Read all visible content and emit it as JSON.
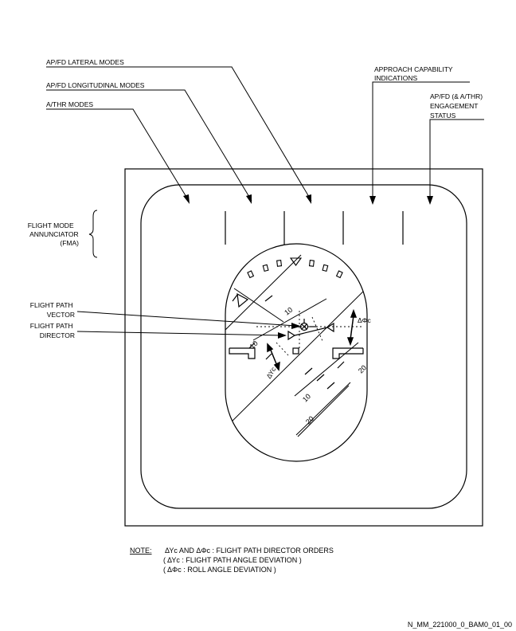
{
  "callouts": {
    "ap_fd_lateral_modes": "AP/FD LATERAL MODES",
    "ap_fd_longitudinal_modes": "AP/FD LONGITUDINAL MODES",
    "athr_modes": "A/THR MODES",
    "approach_capability": [
      "APPROACH CAPABILITY",
      "INDICATIONS"
    ],
    "engagement_status": [
      "AP/FD (& A/THR)",
      "ENGAGEMENT",
      "STATUS"
    ],
    "fma": [
      "FLIGHT MODE",
      "ANNUNCIATOR",
      "(FMA)"
    ],
    "flight_path_vector": [
      "FLIGHT PATH",
      "VECTOR"
    ],
    "flight_path_director": [
      "FLIGHT PATH",
      "DIRECTOR"
    ]
  },
  "pitch_scale_labels": {
    "upper_10": "10",
    "left_10": "10",
    "lower_10": "10",
    "right_20": "20",
    "lower_20": "20"
  },
  "symbols": {
    "delta_phi_c": "ΔΦc",
    "delta_gamma_c": "ΔΥc"
  },
  "note": {
    "label": "NOTE:",
    "line1": "ΔΥc  AND  ΔΦc : FLIGHT PATH DIRECTOR ORDERS",
    "line2": "( ΔΥc : FLIGHT PATH ANGLE DEVIATION )",
    "line3": "( ΔΦc : ROLL ANGLE DEVIATION )"
  },
  "drawing_reference": "N_MM_221000_0_BAM0_01_00"
}
